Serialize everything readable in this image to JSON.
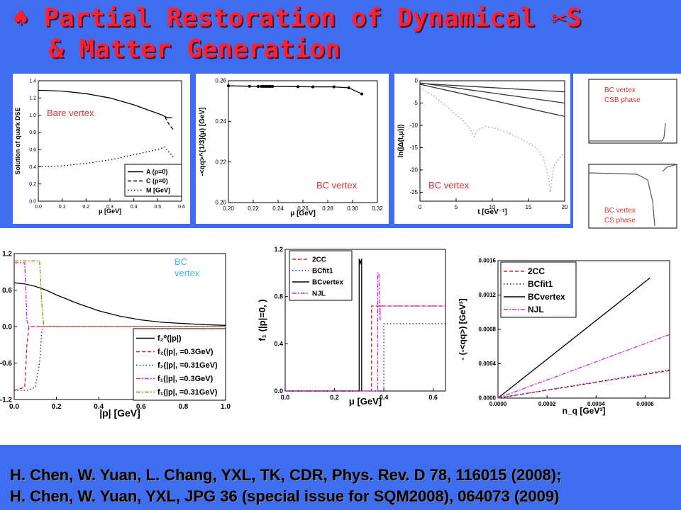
{
  "slide": {
    "title_line1": "♠ Partial Restoration of Dynamical ✂S",
    "title_line2": "& Matter Generation",
    "references": [
      "H. Chen, W. Yuan, L. Chang, YXL, TK, CDR,  Phys. Rev. D 78, 116015 (2008);",
      "H. Chen, W. Yuan, YXL, JPG 36 (special issue for SQM2008), 064073 (2009)"
    ]
  },
  "colors": {
    "background": "#3f6df2",
    "title": "#ff2030",
    "annotation": "#e03030",
    "magenta": "#e020e0",
    "olive": "#909000",
    "blue": "#1010d0",
    "red": "#e02020"
  },
  "chart_data": [
    {
      "type": "line",
      "annotation": "Bare vertex",
      "xlabel": "μ [GeV]",
      "ylabel": "Solution of quark DSE",
      "xlim": [
        0.0,
        0.6
      ],
      "ylim": [
        0.0,
        1.4
      ],
      "xticks": [
        "0.0",
        "0.1",
        "0.2",
        "0.3",
        "0.4",
        "0.5",
        "0.6"
      ],
      "yticks": [
        "0.0",
        "0.2",
        "0.4",
        "0.6",
        "0.8",
        "1.0",
        "1.2",
        "1.4"
      ],
      "legend": [
        "A (p=0)",
        "C (p=0)",
        "M [GeV]"
      ],
      "series": [
        {
          "name": "A (p=0)",
          "x": [
            0,
            0.1,
            0.2,
            0.3,
            0.4,
            0.45,
            0.5,
            0.52,
            0.54,
            0.56
          ],
          "y": [
            1.29,
            1.28,
            1.25,
            1.2,
            1.12,
            1.07,
            1.02,
            1.0,
            0.97,
            0.97
          ]
        },
        {
          "name": "C (p=0)",
          "x": [
            0.53,
            0.55,
            0.57
          ],
          "y": [
            0.98,
            0.88,
            0.82
          ]
        },
        {
          "name": "M [GeV]",
          "x": [
            0,
            0.1,
            0.2,
            0.3,
            0.4,
            0.45,
            0.5,
            0.53,
            0.55,
            0.57
          ],
          "y": [
            0.4,
            0.41,
            0.44,
            0.48,
            0.54,
            0.57,
            0.6,
            0.63,
            0.56,
            0.5
          ]
        }
      ]
    },
    {
      "type": "line",
      "annotation": "BC vertex",
      "xlabel": "μ [GeV]",
      "ylabel": "-<qq>^{1/3}(μ) [GeV]",
      "xlim": [
        0.2,
        0.32
      ],
      "ylim": [
        0.2,
        0.26
      ],
      "xticks": [
        "0.20",
        "0.22",
        "0.24",
        "0.26",
        "0.28",
        "0.30",
        "0.32"
      ],
      "yticks": [
        "0.20",
        "0.22",
        "0.24",
        "0.26"
      ],
      "series": [
        {
          "name": "",
          "x": [
            0.2,
            0.217,
            0.224,
            0.2265,
            0.228,
            0.2295,
            0.231,
            0.2325,
            0.234,
            0.2355,
            0.256,
            0.268,
            0.285,
            0.297,
            0.3075
          ],
          "y": [
            0.2575,
            0.2573,
            0.2572,
            0.2572,
            0.2572,
            0.2572,
            0.2572,
            0.2572,
            0.2572,
            0.2572,
            0.2571,
            0.257,
            0.257,
            0.2565,
            0.2535
          ]
        }
      ]
    },
    {
      "type": "line",
      "annotation": "BC vertex",
      "xlabel": "t [GeV⁻¹]",
      "ylabel": "ln(|Δ(t,μ)|)",
      "xlim": [
        0,
        20
      ],
      "ylim": [
        -27,
        0
      ],
      "xticks": [
        "0",
        "5",
        "10",
        "15",
        "20"
      ],
      "yticks": [
        "0",
        "-5",
        "-10",
        "-15",
        "-20",
        "-25"
      ],
      "series": [
        {
          "name": "",
          "x": [
            0,
            20
          ],
          "y": [
            -0.6,
            -2.5
          ]
        },
        {
          "name": "",
          "x": [
            0,
            20
          ],
          "y": [
            -0.5,
            -5
          ]
        },
        {
          "name": "",
          "x": [
            0,
            20
          ],
          "y": [
            -0.8,
            -8
          ]
        },
        {
          "name": "",
          "x": [
            0,
            2,
            4,
            6,
            7,
            7.5,
            8,
            9,
            10,
            12,
            14,
            16,
            17,
            17.8,
            18,
            18.5,
            20
          ],
          "y": [
            -1.5,
            -3.5,
            -6.2,
            -9,
            -11,
            -12.5,
            -11,
            -10.3,
            -10.5,
            -11.5,
            -13,
            -15,
            -17,
            -22,
            -25,
            -19,
            -16
          ]
        }
      ]
    },
    {
      "type": "line",
      "annotation": "BC vertex\nCSB phase",
      "series": []
    },
    {
      "type": "line",
      "annotation": "BC vertex\nCS phase",
      "series": []
    },
    {
      "type": "line",
      "annotation": "BC\nvertex",
      "xlabel": "|p| [GeV]",
      "xlim": [
        0.0,
        1.0
      ],
      "ylim": [
        -1.2,
        1.2
      ],
      "xticks": [
        "0.0",
        "0.2",
        "0.4",
        "0.6",
        "0.8",
        "1.0"
      ],
      "yticks": [
        "1.2",
        "0.6",
        "0.0",
        "-0.6",
        "-1.2"
      ],
      "legend": [
        "f₂⁰(|p|)",
        "f₂(|p|,  =0.3GeV)",
        "f₂(|p|,  =0.31GeV)",
        "f₁(|p|,  =0.3GeV)",
        "f₁(|p|,  =0.31GeV)"
      ],
      "series": [
        {
          "name": "f₂⁰(|p|)",
          "x": [
            0,
            0.05,
            0.1,
            0.15,
            0.2,
            0.3,
            0.4,
            0.5,
            0.6,
            0.7,
            0.8,
            0.9,
            1.0
          ],
          "y": [
            0.72,
            0.7,
            0.66,
            0.6,
            0.52,
            0.38,
            0.26,
            0.17,
            0.11,
            0.07,
            0.05,
            0.03,
            0.02
          ]
        },
        {
          "name": "f₂(|p|,  =0.3GeV)",
          "x": [
            0,
            0.05,
            0.06,
            0.07,
            0.1,
            1.0
          ],
          "y": [
            -1.05,
            -1.0,
            -0.3,
            0.0,
            0.0,
            0.0
          ]
        },
        {
          "name": "f₂(|p|,  =0.31GeV)",
          "x": [
            0,
            0.06,
            0.1,
            0.12,
            0.13,
            0.14,
            1.0
          ],
          "y": [
            -1.05,
            -1.05,
            -1.0,
            -0.6,
            -0.1,
            0.0,
            0.0
          ]
        },
        {
          "name": "f₁(|p|,  =0.3GeV)",
          "x": [
            0,
            0.05,
            0.06,
            0.07,
            1.0
          ],
          "y": [
            1.05,
            1.05,
            0.1,
            0.0,
            0.0
          ]
        },
        {
          "name": "f₁(|p|,  =0.31GeV)",
          "x": [
            0,
            0.12,
            0.13,
            0.14,
            1.0
          ],
          "y": [
            1.08,
            1.08,
            0.4,
            0.0,
            0.0
          ]
        }
      ]
    },
    {
      "type": "line",
      "xlabel": "μ [GeV]",
      "ylabel": "f₁ (|p|=0,  )",
      "xlim": [
        0.0,
        0.65
      ],
      "ylim": [
        0.0,
        1.2
      ],
      "xticks": [
        "0.0",
        "0.2",
        "0.4",
        "0.6"
      ],
      "yticks": [
        "0.0",
        "0.4",
        "0.8",
        "1.2"
      ],
      "legend": [
        "2CC",
        "BCfit1",
        "BCvertex",
        "NJL"
      ],
      "series": [
        {
          "name": "2CC",
          "x": [
            0,
            0.35,
            0.35,
            0.65
          ],
          "y": [
            0,
            0,
            0.72,
            0.72
          ]
        },
        {
          "name": "BCfit1",
          "x": [
            0,
            0.4,
            0.4,
            0.65
          ],
          "y": [
            0,
            0,
            0.57,
            0.57
          ]
        },
        {
          "name": "BCvertex",
          "x": [
            0,
            0.3,
            0.3,
            0.305,
            0.31,
            0.31
          ],
          "y": [
            0,
            0,
            1.12,
            1.08,
            1.12,
            0
          ]
        },
        {
          "name": "NJL",
          "x": [
            0,
            0.375,
            0.375,
            0.38,
            0.385,
            0.385,
            0.65
          ],
          "y": [
            0,
            0,
            1.0,
            1.0,
            0.6,
            0.72,
            0.72
          ]
        }
      ]
    },
    {
      "type": "line",
      "xlabel": "n_q [GeV³]",
      "ylabel": "- (-<qq>) [GeV³]",
      "xlim": [
        0.0,
        0.0007
      ],
      "ylim": [
        0.0,
        0.0016
      ],
      "xticks": [
        "0.0000",
        "0.0002",
        "0.0004",
        "0.0006"
      ],
      "yticks": [
        "0.0000",
        "0.0004",
        "0.0008",
        "0.0012",
        "0.0016"
      ],
      "legend": [
        "2CC",
        "BCfit1",
        "BCvertex",
        "NJL"
      ],
      "series": [
        {
          "name": "2CC",
          "x": [
            0,
            0.0007
          ],
          "y": [
            0,
            0.00032
          ]
        },
        {
          "name": "BCfit1",
          "x": [
            0,
            0.0007
          ],
          "y": [
            0,
            0.00033
          ]
        },
        {
          "name": "BCvertex",
          "x": [
            0,
            0.00062
          ],
          "y": [
            0,
            0.0014
          ]
        },
        {
          "name": "NJL",
          "x": [
            0,
            0.0007
          ],
          "y": [
            0,
            0.00074
          ]
        }
      ]
    }
  ]
}
